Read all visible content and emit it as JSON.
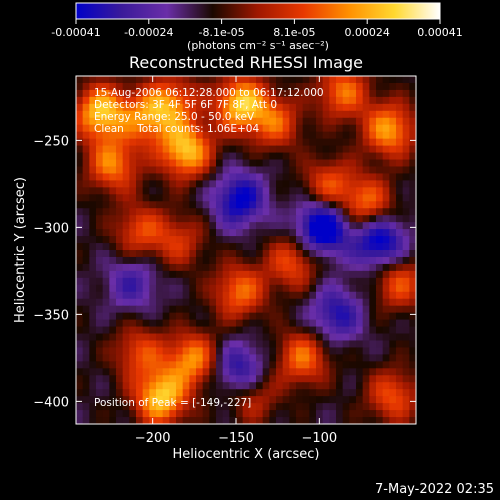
{
  "chart_data": {
    "type": "heatmap",
    "title": "Reconstructed RHESSI Image",
    "xlabel": "Heliocentric X (arcsec)",
    "ylabel": "Heliocentric Y (arcsec)",
    "xticks": [
      -200,
      -150,
      -100
    ],
    "yticks": [
      -250,
      -300,
      -350,
      -400
    ],
    "xlim": [
      -246,
      -42
    ],
    "ylim": [
      -413,
      -213
    ],
    "colorbar": {
      "min": -0.00041,
      "max": 0.00041,
      "ticks": [
        "-0.00041",
        "-0.00024",
        "-8.1e-05",
        "8.1e-05",
        "0.00024",
        "0.00041"
      ],
      "unit_label": "(photons cm⁻² s⁻¹ asec⁻²)",
      "colors": [
        "#0000c8",
        "#3a1a9a",
        "#6a2ea8",
        "#1a0800",
        "#a01800",
        "#e83800",
        "#ff9000",
        "#ffd830",
        "#ffffff"
      ]
    },
    "annotations": [
      "15-Aug-2006 06:12:28.000 to 06:17:12.000",
      "Detectors: 3F 4F 5F 6F 7F 8F, Att 0",
      "Energy Range: 25.0 - 50.0 keV",
      "Clean    Total counts: 1.06E+04",
      "Position of Peak = [-149,-227]"
    ],
    "peak": {
      "x": -149,
      "y": -227
    },
    "hotspots": [
      {
        "x": -233,
        "y": -232,
        "v": 0.00041
      },
      {
        "x": -226,
        "y": -262,
        "v": 0.0003
      },
      {
        "x": -205,
        "y": -235,
        "v": 0.00028
      },
      {
        "x": -182,
        "y": -254,
        "v": 0.0004
      },
      {
        "x": -190,
        "y": -226,
        "v": 0.00026
      },
      {
        "x": -149,
        "y": -227,
        "v": 0.00041
      },
      {
        "x": -128,
        "y": -238,
        "v": 0.00024
      },
      {
        "x": -88,
        "y": -220,
        "v": 0.00028
      },
      {
        "x": -60,
        "y": -242,
        "v": 0.00034
      },
      {
        "x": -73,
        "y": -285,
        "v": 0.00028
      },
      {
        "x": -96,
        "y": -274,
        "v": 0.00024
      },
      {
        "x": -210,
        "y": -300,
        "v": 0.00022
      },
      {
        "x": -186,
        "y": -306,
        "v": 0.00018
      },
      {
        "x": -150,
        "y": -335,
        "v": 0.00028
      },
      {
        "x": -118,
        "y": -318,
        "v": 0.00024
      },
      {
        "x": -54,
        "y": -330,
        "v": 0.00024
      },
      {
        "x": -210,
        "y": -370,
        "v": 0.00022
      },
      {
        "x": -178,
        "y": -374,
        "v": 0.00032
      },
      {
        "x": -197,
        "y": -396,
        "v": 0.00041
      },
      {
        "x": -112,
        "y": -373,
        "v": 0.00028
      },
      {
        "x": -58,
        "y": -395,
        "v": 0.00024
      },
      {
        "x": -142,
        "y": -395,
        "v": 0.00018
      }
    ],
    "coldspots": [
      {
        "x": -100,
        "y": -298,
        "v": -0.00041
      },
      {
        "x": -150,
        "y": -282,
        "v": -0.0003
      },
      {
        "x": -66,
        "y": -306,
        "v": -0.00034
      },
      {
        "x": -150,
        "y": -380,
        "v": -0.00026
      },
      {
        "x": -92,
        "y": -348,
        "v": -0.00024
      },
      {
        "x": -214,
        "y": -330,
        "v": -0.00018
      }
    ]
  },
  "timestamp": "7-May-2022 02:35"
}
